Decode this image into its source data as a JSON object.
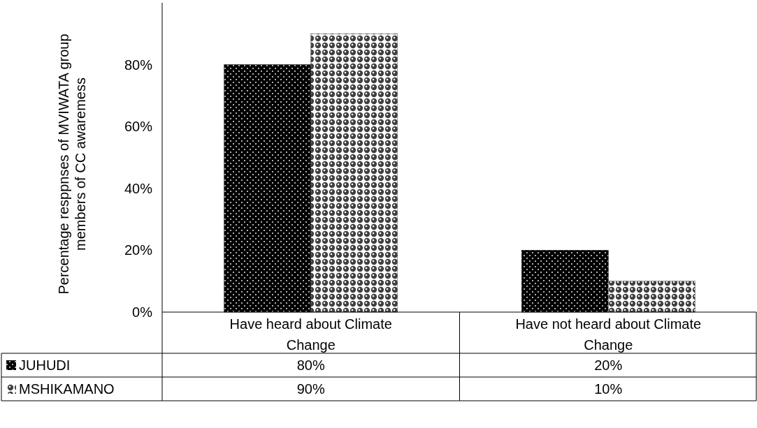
{
  "chart_data": {
    "type": "bar",
    "ylabel": "Percentage resppnses of MVIWATA group\nmembers of CC awaremess",
    "categories": [
      "Have heard about Climate\nChange",
      "Have not heard about Climate\nChange"
    ],
    "series": [
      {
        "name": "JUHUDI",
        "color": "#000000",
        "values": [
          80,
          20
        ],
        "value_labels": [
          "80%",
          "20%"
        ]
      },
      {
        "name": "MSHIKAMANO",
        "color": "#404040",
        "values": [
          90,
          10
        ],
        "value_labels": [
          "90%",
          "10%"
        ]
      }
    ],
    "ylim": [
      0,
      100
    ],
    "yticks": [
      {
        "value": 0,
        "label": "0%"
      },
      {
        "value": 20,
        "label": "20%"
      },
      {
        "value": 40,
        "label": "40%"
      },
      {
        "value": 60,
        "label": "60%"
      },
      {
        "value": 80,
        "label": "80%"
      }
    ],
    "grid": false,
    "legend": "bottom"
  }
}
